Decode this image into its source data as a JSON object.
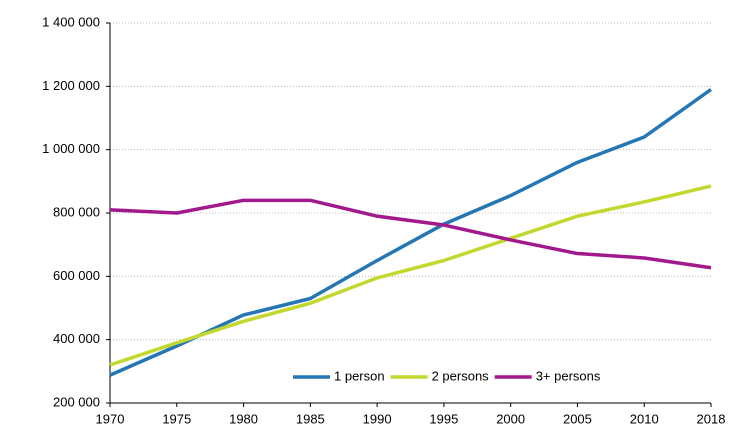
{
  "chart_data": {
    "type": "line",
    "categories": [
      "1970",
      "1975",
      "1980",
      "1985",
      "1990",
      "1995",
      "2000",
      "2005",
      "2010",
      "2018"
    ],
    "series": [
      {
        "name": "1 person",
        "color": "#2576b5",
        "values": [
          288000,
          380000,
          478000,
          530000,
          650000,
          765000,
          855000,
          960000,
          1040000,
          1190000
        ]
      },
      {
        "name": "2 persons",
        "color": "#c3d82e",
        "values": [
          320000,
          390000,
          458000,
          515000,
          595000,
          650000,
          720000,
          790000,
          835000,
          885000
        ]
      },
      {
        "name": "3+ persons",
        "color": "#a2198c",
        "values": [
          810000,
          800000,
          840000,
          840000,
          790000,
          762000,
          715000,
          672000,
          658000,
          627000
        ]
      }
    ],
    "ylim": [
      200000,
      1400000
    ],
    "yticks": [
      {
        "value": 200000,
        "label": "200 000"
      },
      {
        "value": 400000,
        "label": "400 000"
      },
      {
        "value": 600000,
        "label": "600 000"
      },
      {
        "value": 800000,
        "label": "800 000"
      },
      {
        "value": 1000000,
        "label": "1 000 000"
      },
      {
        "value": 1200000,
        "label": "1 200 000"
      },
      {
        "value": 1400000,
        "label": "1 400 000"
      }
    ],
    "grid": true,
    "legend": "lower-right"
  }
}
